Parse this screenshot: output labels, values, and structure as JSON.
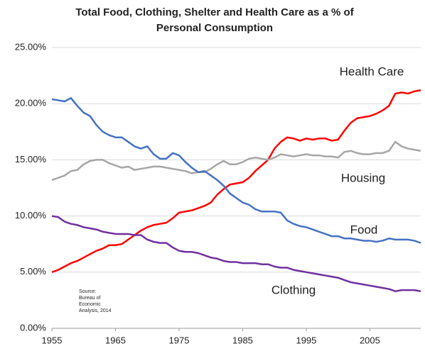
{
  "chart_data": {
    "type": "line",
    "title": [
      "Total Food, Clothing, Shelter and Health Care as a % of",
      "Personal Consumption"
    ],
    "x": [
      1955,
      1956,
      1957,
      1958,
      1959,
      1960,
      1961,
      1962,
      1963,
      1964,
      1965,
      1966,
      1967,
      1968,
      1969,
      1970,
      1971,
      1972,
      1973,
      1974,
      1975,
      1976,
      1977,
      1978,
      1979,
      1980,
      1981,
      1982,
      1983,
      1984,
      1985,
      1986,
      1987,
      1988,
      1989,
      1990,
      1991,
      1992,
      1993,
      1994,
      1995,
      1996,
      1997,
      1998,
      1999,
      2000,
      2001,
      2002,
      2003,
      2004,
      2005,
      2006,
      2007,
      2008,
      2009,
      2010,
      2011,
      2012,
      2013
    ],
    "xlim": [
      1955,
      2013
    ],
    "xticks": [
      1955,
      1965,
      1975,
      1985,
      1995,
      2005
    ],
    "ylim": [
      0,
      25
    ],
    "yticks": [
      {
        "value": 0,
        "label": "0.00%"
      },
      {
        "value": 5,
        "label": "5.00%"
      },
      {
        "value": 10,
        "label": "10.00%"
      },
      {
        "value": 15,
        "label": "15.00%"
      },
      {
        "value": 20,
        "label": "20.00%"
      },
      {
        "value": 25,
        "label": "25.00%"
      }
    ],
    "grid": true,
    "series": [
      {
        "name": "Health Care",
        "color": "#ff0000",
        "values": [
          5.0,
          5.2,
          5.5,
          5.8,
          6.0,
          6.3,
          6.6,
          6.9,
          7.1,
          7.4,
          7.4,
          7.5,
          7.9,
          8.3,
          8.7,
          9.0,
          9.2,
          9.3,
          9.4,
          9.8,
          10.3,
          10.4,
          10.5,
          10.7,
          10.9,
          11.2,
          11.9,
          12.4,
          12.8,
          12.9,
          13.0,
          13.4,
          14.0,
          14.5,
          15.0,
          16.0,
          16.6,
          17.0,
          16.9,
          16.7,
          16.9,
          16.8,
          16.9,
          16.9,
          16.7,
          16.8,
          17.6,
          18.3,
          18.7,
          18.8,
          18.9,
          19.1,
          19.4,
          19.8,
          20.9,
          21.0,
          20.9,
          21.1,
          21.2
        ]
      },
      {
        "name": "Housing",
        "color": "#a6a6a6",
        "values": [
          13.2,
          13.4,
          13.6,
          14.0,
          14.1,
          14.6,
          14.9,
          15.0,
          15.0,
          14.7,
          14.5,
          14.3,
          14.4,
          14.1,
          14.2,
          14.3,
          14.4,
          14.4,
          14.3,
          14.2,
          14.1,
          14.0,
          13.8,
          13.9,
          13.9,
          14.2,
          14.6,
          14.9,
          14.6,
          14.6,
          14.8,
          15.1,
          15.2,
          15.1,
          15.0,
          15.2,
          15.5,
          15.4,
          15.3,
          15.4,
          15.5,
          15.4,
          15.4,
          15.3,
          15.3,
          15.2,
          15.7,
          15.8,
          15.6,
          15.5,
          15.5,
          15.6,
          15.6,
          15.8,
          16.6,
          16.2,
          16.0,
          15.9,
          15.8
        ]
      },
      {
        "name": "Food",
        "color": "#4472c4",
        "values": [
          20.4,
          20.3,
          20.2,
          20.5,
          19.8,
          19.2,
          18.9,
          18.1,
          17.5,
          17.2,
          17.0,
          17.0,
          16.6,
          16.2,
          16.0,
          16.2,
          15.5,
          15.1,
          15.1,
          15.6,
          15.4,
          14.8,
          14.3,
          13.9,
          14.0,
          13.6,
          13.2,
          12.7,
          12.0,
          11.6,
          11.2,
          11.0,
          10.6,
          10.4,
          10.4,
          10.4,
          10.3,
          9.6,
          9.3,
          9.1,
          9.0,
          8.8,
          8.6,
          8.4,
          8.2,
          8.2,
          8.0,
          8.0,
          7.9,
          7.8,
          7.8,
          7.7,
          7.8,
          8.0,
          7.9,
          7.9,
          7.9,
          7.8,
          7.6
        ]
      },
      {
        "name": "Clothing",
        "color": "#7030a0",
        "values": [
          10.0,
          9.9,
          9.5,
          9.3,
          9.2,
          9.0,
          8.9,
          8.8,
          8.6,
          8.5,
          8.4,
          8.4,
          8.4,
          8.3,
          8.3,
          7.9,
          7.7,
          7.6,
          7.6,
          7.2,
          6.9,
          6.8,
          6.8,
          6.7,
          6.5,
          6.3,
          6.2,
          6.0,
          5.9,
          5.9,
          5.8,
          5.8,
          5.8,
          5.7,
          5.7,
          5.5,
          5.4,
          5.4,
          5.2,
          5.1,
          5.0,
          4.9,
          4.8,
          4.7,
          4.6,
          4.5,
          4.3,
          4.1,
          4.0,
          3.9,
          3.8,
          3.7,
          3.6,
          3.5,
          3.3,
          3.4,
          3.4,
          3.4,
          3.3
        ]
      }
    ],
    "source": [
      "Source:",
      "Bureau of",
      "Economic",
      "Analysis, 2014"
    ]
  }
}
